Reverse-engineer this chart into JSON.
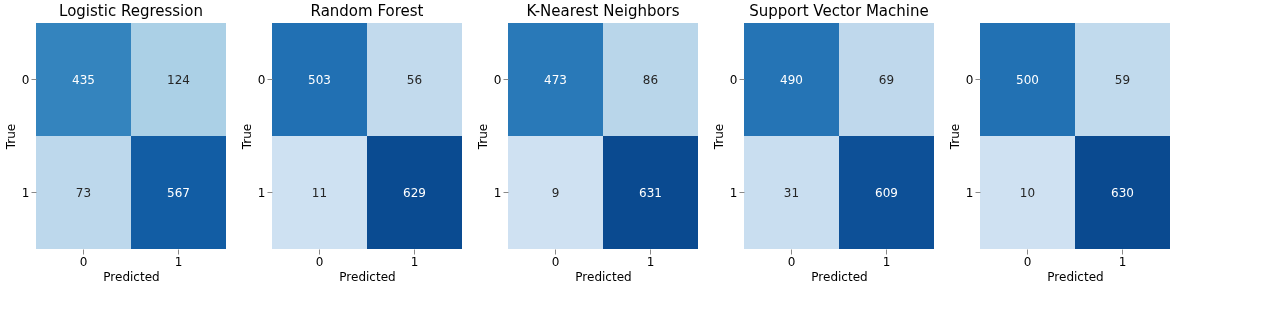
{
  "chart_data": [
    {
      "type": "heatmap",
      "title": "Logistic Regression",
      "xlabel": "Predicted",
      "ylabel": "True",
      "categories": [
        "0",
        "1"
      ],
      "y_categories": [
        "0",
        "1"
      ],
      "cells": [
        [
          435,
          124
        ],
        [
          73,
          567
        ]
      ],
      "data_labels": true
    },
    {
      "type": "heatmap",
      "title": "Random Forest",
      "xlabel": "Predicted",
      "ylabel": "True",
      "categories": [
        "0",
        "1"
      ],
      "y_categories": [
        "0",
        "1"
      ],
      "cells": [
        [
          503,
          56
        ],
        [
          11,
          629
        ]
      ],
      "data_labels": true
    },
    {
      "type": "heatmap",
      "title": "K-Nearest Neighbors",
      "xlabel": "Predicted",
      "ylabel": "True",
      "categories": [
        "0",
        "1"
      ],
      "y_categories": [
        "0",
        "1"
      ],
      "cells": [
        [
          473,
          86
        ],
        [
          9,
          631
        ]
      ],
      "data_labels": true
    },
    {
      "type": "heatmap",
      "title": "Support Vector Machine",
      "xlabel": "Predicted",
      "ylabel": "True",
      "categories": [
        "0",
        "1"
      ],
      "y_categories": [
        "0",
        "1"
      ],
      "cells": [
        [
          490,
          69
        ],
        [
          31,
          609
        ]
      ],
      "data_labels": true
    },
    {
      "type": "heatmap",
      "xlabel": "Predicted",
      "ylabel": "True",
      "categories": [
        "0",
        "1"
      ],
      "y_categories": [
        "0",
        "1"
      ],
      "cells": [
        [
          500,
          59
        ],
        [
          10,
          630
        ]
      ],
      "data_labels": true
    }
  ]
}
